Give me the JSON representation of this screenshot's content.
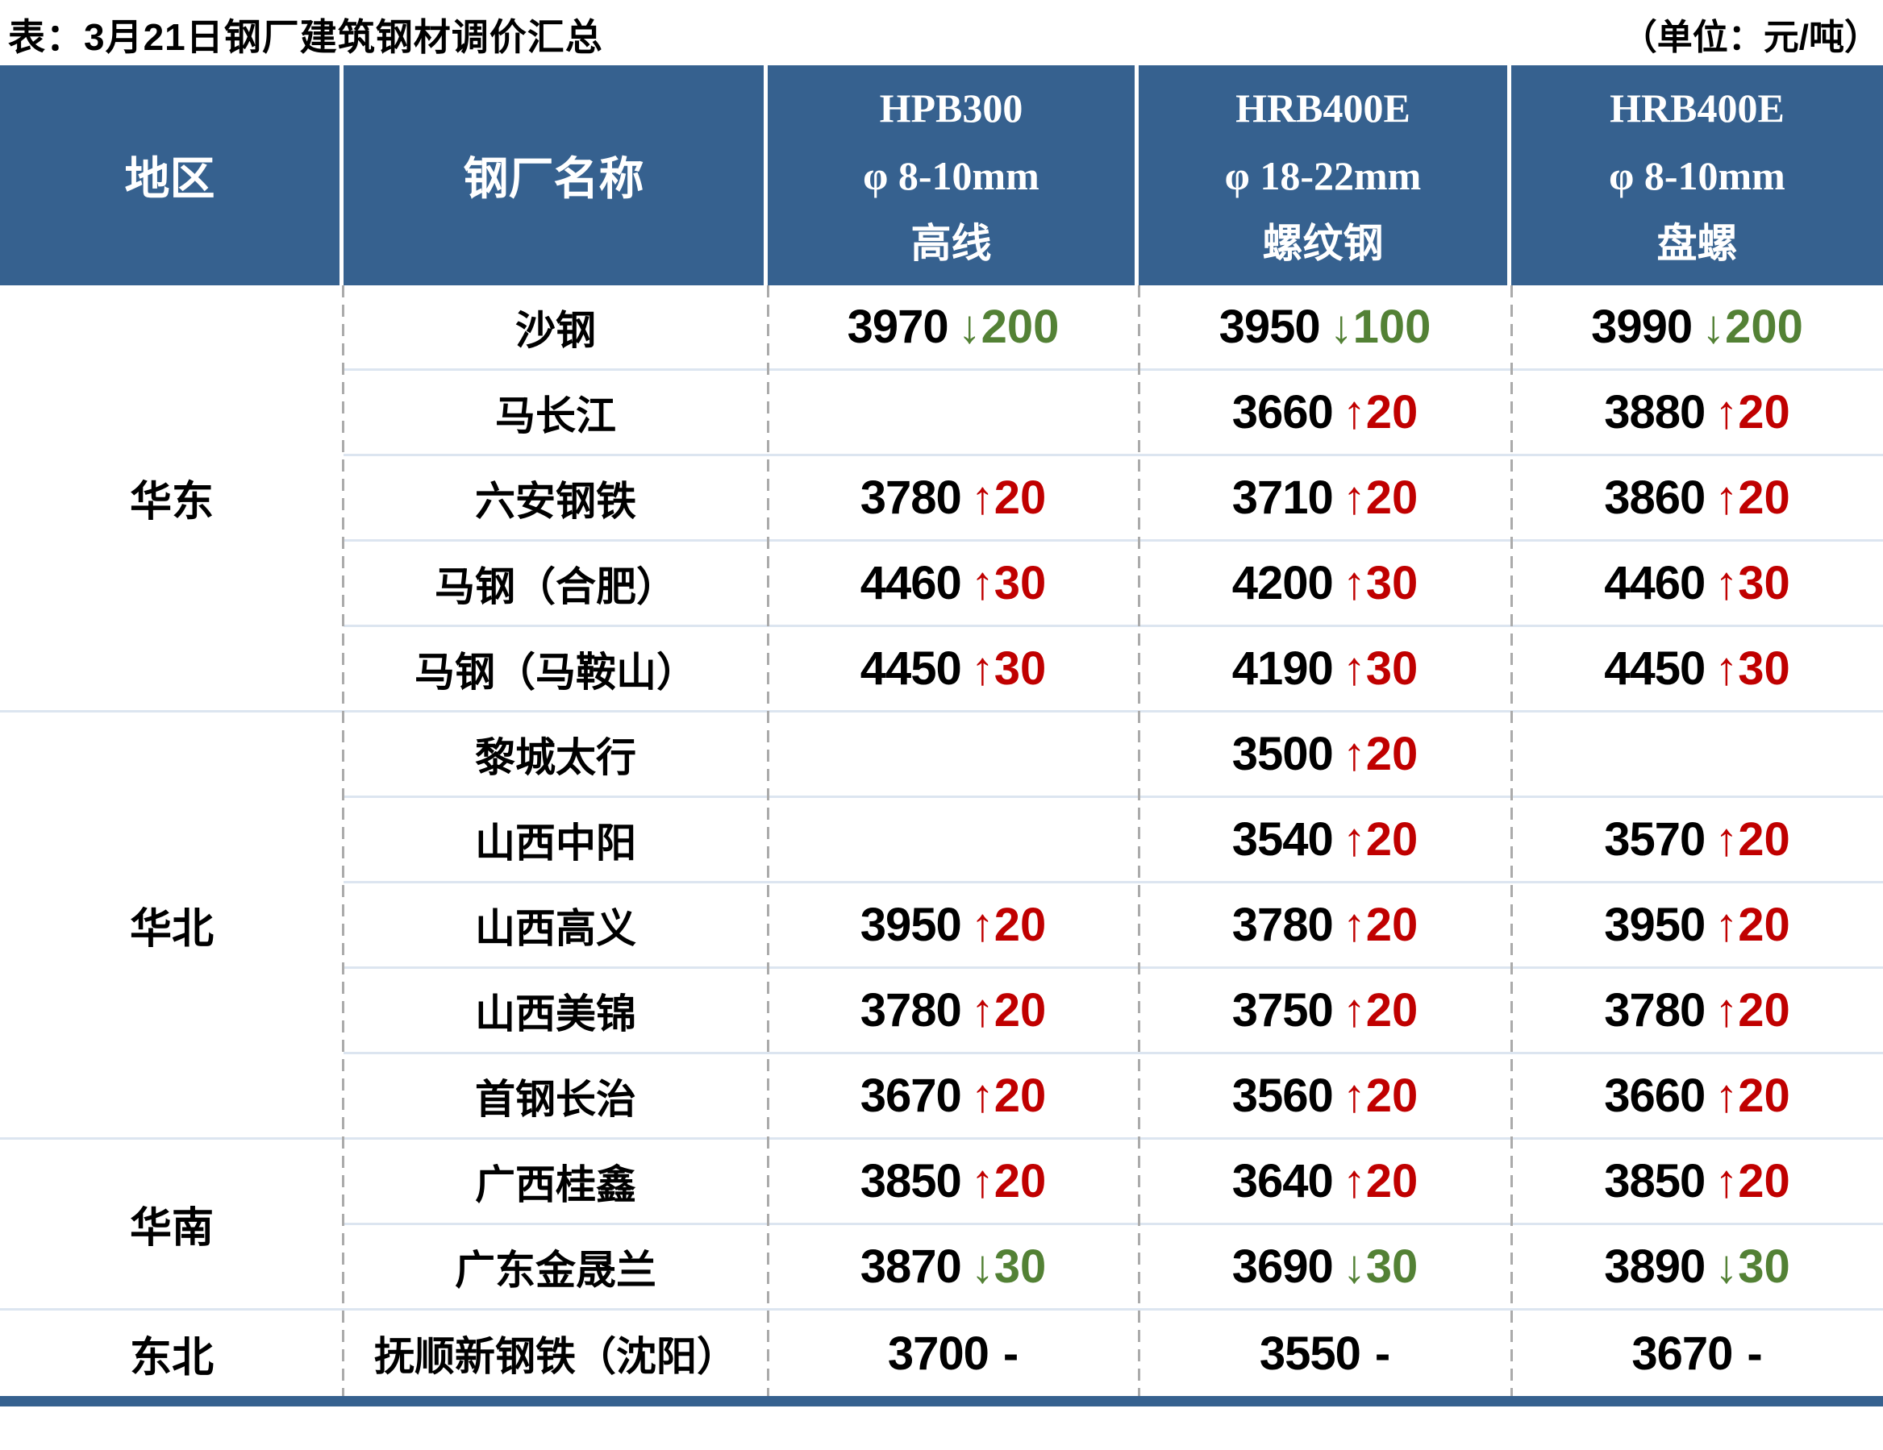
{
  "title": "表：3月21日钢厂建筑钢材调价汇总",
  "unit_label": "（单位：元/吨）",
  "columns": {
    "region": "地区",
    "mill": "钢厂名称",
    "products": [
      {
        "grade": "HPB300",
        "spec": "φ 8-10mm",
        "category": "高线"
      },
      {
        "grade": "HRB400E",
        "spec": "φ 18-22mm",
        "category": "螺纹钢"
      },
      {
        "grade": "HRB400E",
        "spec": "φ 8-10mm",
        "category": "盘螺"
      }
    ]
  },
  "symbols": {
    "up": "↑",
    "down": "↓",
    "flat": "-"
  },
  "colors": {
    "header_bg": "#36618F",
    "footer_bar": "#36618F",
    "up": "#C00000",
    "down": "#538135",
    "row_line": "#DCE5F0",
    "column_dash": "#ABABAB",
    "price_text": "#000000"
  },
  "regions": [
    {
      "name": "华东",
      "mills": [
        {
          "name": "沙钢",
          "prices": [
            {
              "value": "3970",
              "dir": "down",
              "delta": "200"
            },
            {
              "value": "3950",
              "dir": "down",
              "delta": "100"
            },
            {
              "value": "3990",
              "dir": "down",
              "delta": "200"
            }
          ]
        },
        {
          "name": "马长江",
          "prices": [
            null,
            {
              "value": "3660",
              "dir": "up",
              "delta": "20"
            },
            {
              "value": "3880",
              "dir": "up",
              "delta": "20"
            }
          ]
        },
        {
          "name": "六安钢铁",
          "prices": [
            {
              "value": "3780",
              "dir": "up",
              "delta": "20"
            },
            {
              "value": "3710",
              "dir": "up",
              "delta": "20"
            },
            {
              "value": "3860",
              "dir": "up",
              "delta": "20"
            }
          ]
        },
        {
          "name": "马钢（合肥）",
          "prices": [
            {
              "value": "4460",
              "dir": "up",
              "delta": "30"
            },
            {
              "value": "4200",
              "dir": "up",
              "delta": "30"
            },
            {
              "value": "4460",
              "dir": "up",
              "delta": "30"
            }
          ]
        },
        {
          "name": "马钢（马鞍山）",
          "prices": [
            {
              "value": "4450",
              "dir": "up",
              "delta": "30"
            },
            {
              "value": "4190",
              "dir": "up",
              "delta": "30"
            },
            {
              "value": "4450",
              "dir": "up",
              "delta": "30"
            }
          ]
        }
      ]
    },
    {
      "name": "华北",
      "mills": [
        {
          "name": "黎城太行",
          "prices": [
            null,
            {
              "value": "3500",
              "dir": "up",
              "delta": "20"
            },
            null
          ]
        },
        {
          "name": "山西中阳",
          "prices": [
            null,
            {
              "value": "3540",
              "dir": "up",
              "delta": "20"
            },
            {
              "value": "3570",
              "dir": "up",
              "delta": "20"
            }
          ]
        },
        {
          "name": "山西高义",
          "prices": [
            {
              "value": "3950",
              "dir": "up",
              "delta": "20"
            },
            {
              "value": "3780",
              "dir": "up",
              "delta": "20"
            },
            {
              "value": "3950",
              "dir": "up",
              "delta": "20"
            }
          ]
        },
        {
          "name": "山西美锦",
          "prices": [
            {
              "value": "3780",
              "dir": "up",
              "delta": "20"
            },
            {
              "value": "3750",
              "dir": "up",
              "delta": "20"
            },
            {
              "value": "3780",
              "dir": "up",
              "delta": "20"
            }
          ]
        },
        {
          "name": "首钢长治",
          "prices": [
            {
              "value": "3670",
              "dir": "up",
              "delta": "20"
            },
            {
              "value": "3560",
              "dir": "up",
              "delta": "20"
            },
            {
              "value": "3660",
              "dir": "up",
              "delta": "20"
            }
          ]
        }
      ]
    },
    {
      "name": "华南",
      "mills": [
        {
          "name": "广西桂鑫",
          "prices": [
            {
              "value": "3850",
              "dir": "up",
              "delta": "20"
            },
            {
              "value": "3640",
              "dir": "up",
              "delta": "20"
            },
            {
              "value": "3850",
              "dir": "up",
              "delta": "20"
            }
          ]
        },
        {
          "name": "广东金晟兰",
          "prices": [
            {
              "value": "3870",
              "dir": "down",
              "delta": "30"
            },
            {
              "value": "3690",
              "dir": "down",
              "delta": "30"
            },
            {
              "value": "3890",
              "dir": "down",
              "delta": "30"
            }
          ]
        }
      ]
    },
    {
      "name": "东北",
      "mills": [
        {
          "name": "抚顺新钢铁（沈阳）",
          "prices": [
            {
              "value": "3700",
              "dir": "flat",
              "delta": ""
            },
            {
              "value": "3550",
              "dir": "flat",
              "delta": ""
            },
            {
              "value": "3670",
              "dir": "flat",
              "delta": ""
            }
          ]
        }
      ]
    }
  ]
}
